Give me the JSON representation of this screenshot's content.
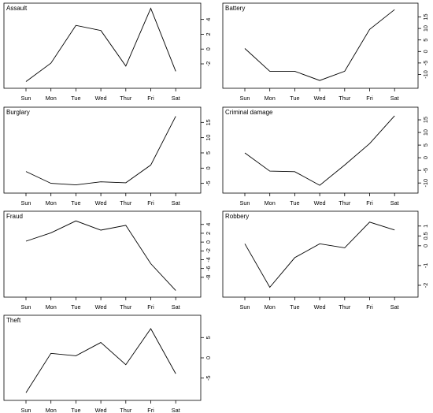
{
  "chart_data": [
    {
      "type": "line",
      "title": "Assault",
      "categories": [
        "Sun",
        "Mon",
        "Tue",
        "Wed",
        "Thur",
        "Fri",
        "Sat"
      ],
      "values": [
        -4.4,
        -1.9,
        3.2,
        2.5,
        -2.3,
        5.5,
        -3.0
      ],
      "yticks": [
        -2,
        0,
        2,
        4
      ],
      "ylim": [
        -5.3,
        6.2
      ]
    },
    {
      "type": "line",
      "title": "Battery",
      "categories": [
        "Sun",
        "Mon",
        "Tue",
        "Wed",
        "Thur",
        "Fri",
        "Sat"
      ],
      "values": [
        1.3,
        -8.6,
        -8.6,
        -12.6,
        -8.6,
        9.6,
        18.2
      ],
      "yticks": [
        -10,
        -5,
        0,
        5,
        10,
        15
      ],
      "ylim": [
        -16.0,
        21.0
      ]
    },
    {
      "type": "line",
      "title": "Burglary",
      "categories": [
        "Sun",
        "Mon",
        "Tue",
        "Wed",
        "Thur",
        "Fri",
        "Sat"
      ],
      "values": [
        -1.1,
        -5.0,
        -5.5,
        -4.5,
        -4.8,
        1.0,
        17.0
      ],
      "yticks": [
        -5,
        0,
        5,
        10,
        15
      ],
      "ylim": [
        -8.2,
        20.0
      ]
    },
    {
      "type": "line",
      "title": "Criminal damage",
      "categories": [
        "Sun",
        "Mon",
        "Tue",
        "Wed",
        "Thur",
        "Fri",
        "Sat"
      ],
      "values": [
        1.9,
        -5.3,
        -5.5,
        -10.9,
        -2.9,
        5.6,
        16.6
      ],
      "yticks": [
        -10,
        -5,
        0,
        5,
        10,
        15
      ],
      "ylim": [
        -14.0,
        20.0
      ]
    },
    {
      "type": "line",
      "title": "Fraud",
      "categories": [
        "Sun",
        "Mon",
        "Tue",
        "Wed",
        "Thur",
        "Fri",
        "Sat"
      ],
      "values": [
        0.2,
        2.1,
        4.8,
        2.7,
        3.8,
        -4.9,
        -11.0
      ],
      "yticks": [
        -8,
        -6,
        -4,
        -2,
        0,
        2,
        4
      ],
      "ylim": [
        -12.5,
        7.0
      ]
    },
    {
      "type": "line",
      "title": "Robbery",
      "categories": [
        "Sun",
        "Mon",
        "Tue",
        "Wed",
        "Thur",
        "Fri",
        "Sat"
      ],
      "values": [
        0.1,
        -2.1,
        -0.6,
        0.1,
        -0.1,
        1.2,
        0.8
      ],
      "yticks": [
        -2.0,
        -1.0,
        0.0,
        0.5,
        1.0
      ],
      "ylim": [
        -2.6,
        1.75
      ]
    },
    {
      "type": "line",
      "title": "Theft",
      "categories": [
        "Sun",
        "Mon",
        "Tue",
        "Wed",
        "Thur",
        "Fri",
        "Sat"
      ],
      "values": [
        -8.6,
        1.1,
        0.5,
        3.8,
        -1.7,
        7.2,
        -3.9
      ],
      "yticks": [
        -5,
        0,
        5
      ],
      "ylim": [
        -10.5,
        10.5
      ]
    }
  ]
}
